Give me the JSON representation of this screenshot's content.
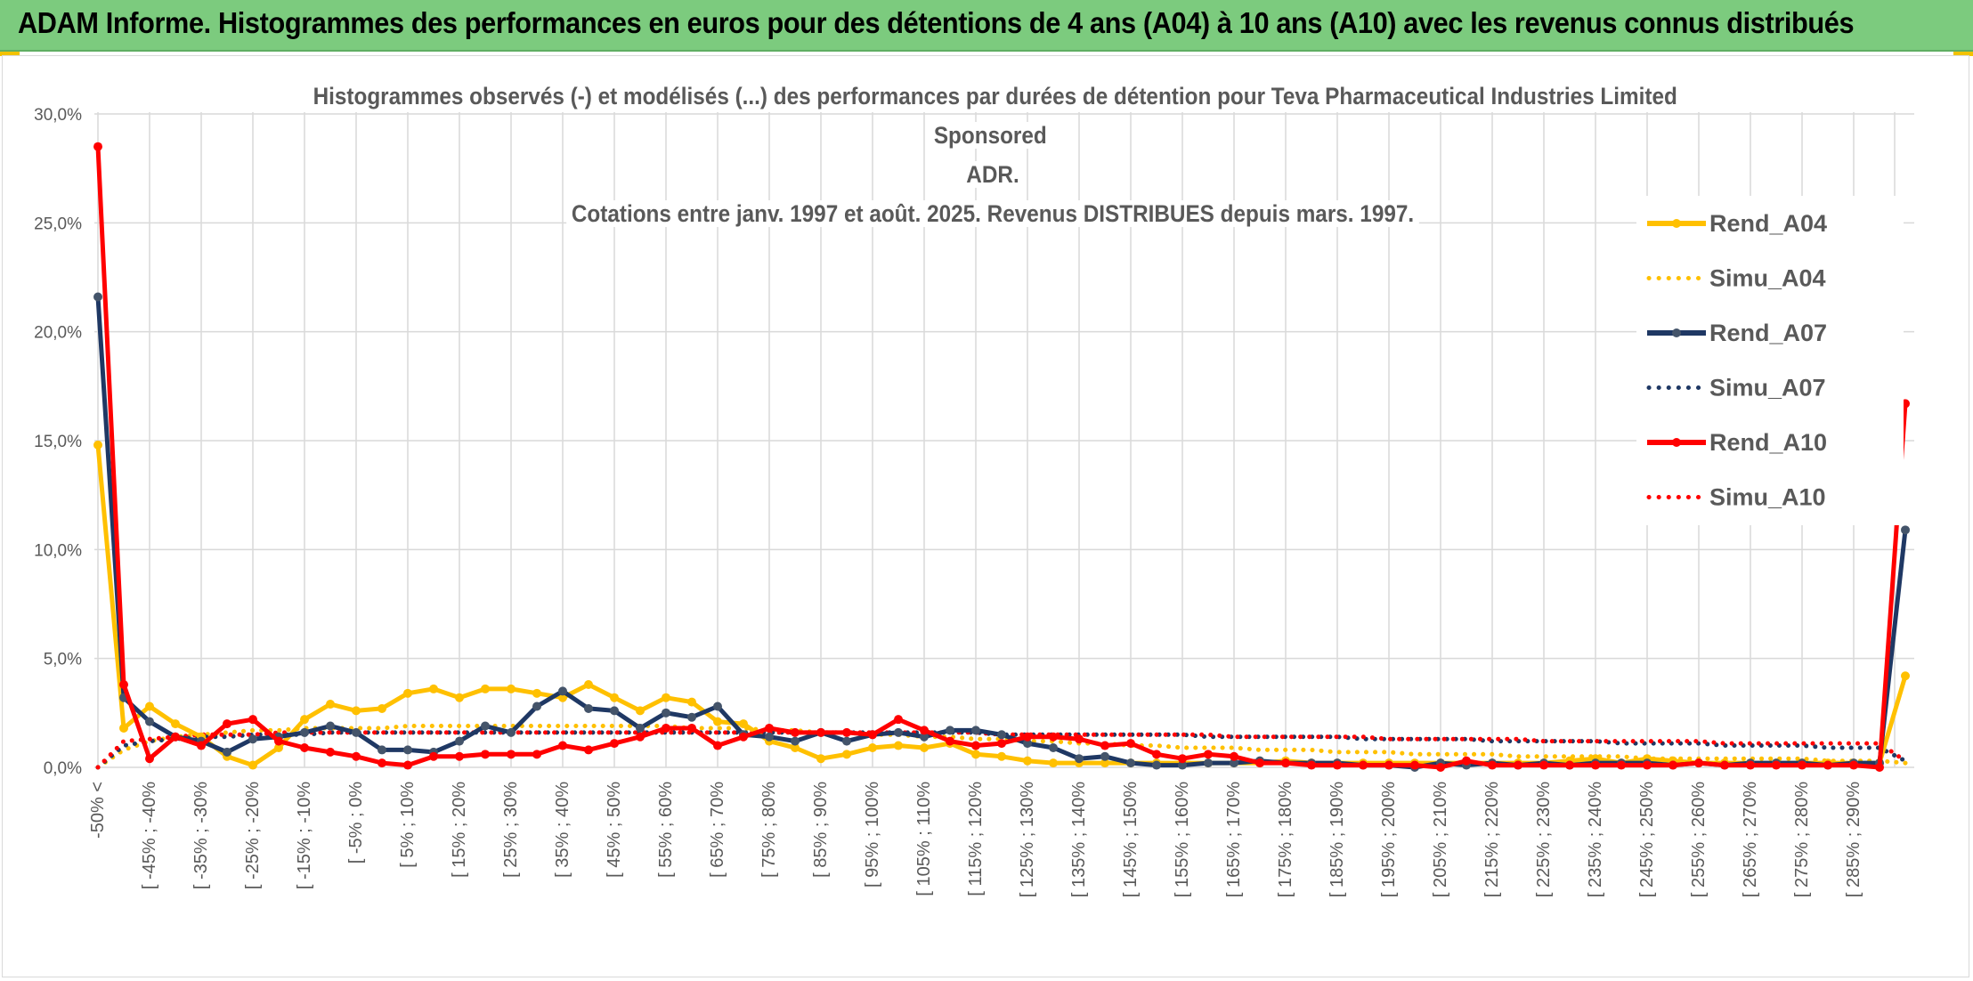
{
  "banner": {
    "title": "ADAM Informe. Histogrammes des performances en euros pour des détentions de 4 ans (A04) à 10 ans (A10) avec les revenus connus distribués"
  },
  "colors": {
    "banner_bg": "#7ccb7e",
    "rend_a04": "#ffc000",
    "rend_a07": "#1f3864",
    "rend_a10": "#ff0000",
    "gridline": "#d9d9d9",
    "axis_text": "#595959"
  },
  "chart_data": {
    "type": "line",
    "title_lines": [
      "Histogrammes observés (-) et modélisés (...) des performances par durées de détention pour Teva Pharmaceutical Industries Limited Sponsored",
      "ADR.",
      "Cotations entre janv. 1997 et août. 2025. Revenus DISTRIBUES depuis mars. 1997."
    ],
    "ylim": [
      0,
      30
    ],
    "yticks": [
      "0,0%",
      "5,0%",
      "10,0%",
      "15,0%",
      "20,0%",
      "25,0%",
      "30,0%"
    ],
    "grid": true,
    "legend_position": "right",
    "category_labels": [
      "-50% <",
      "[ -45% ; -40%",
      "[ -35% ; -30%",
      "[ -25% ; -20%",
      "[ -15% ; -10%",
      "[ -5% ; 0%",
      "[ 5% ; 10%",
      "[ 15% ; 20%",
      "[ 25% ; 30%",
      "[ 35% ; 40%",
      "[ 45% ; 50%",
      "[ 55% ; 60%",
      "[ 65% ; 70%",
      "[ 75% ; 80%",
      "[ 85% ; 90%",
      "[ 95% ; 100%",
      "[ 105% ; 110%",
      "[ 115% ; 120%",
      "[ 125% ; 130%",
      "[ 135% ; 140%",
      "[ 145% ; 150%",
      "[ 155% ; 160%",
      "[ 165% ; 170%",
      "[ 175% ; 180%",
      "[ 185% ; 190%",
      "[ 195% ; 200%",
      "[ 205% ; 210%",
      "[ 215% ; 220%",
      "[ 225% ; 230%",
      "[ 235% ; 240%",
      "[ 245% ; 250%",
      "[ 255% ; 260%",
      "[ 265% ; 270%",
      "[ 275% ; 280%",
      "[ 285% ; 290%"
    ],
    "series": [
      {
        "name": "Rend_A04",
        "style": "solid",
        "color": "#ffc000",
        "values": [
          14.8,
          1.8,
          2.8,
          2.0,
          1.4,
          0.5,
          0.1,
          0.9,
          2.2,
          2.9,
          2.6,
          2.7,
          3.4,
          3.6,
          3.2,
          3.6,
          3.6,
          3.4,
          3.2,
          3.8,
          3.2,
          2.6,
          3.2,
          3.0,
          2.1,
          2.0,
          1.2,
          0.9,
          0.4,
          0.6,
          0.9,
          1.0,
          0.9,
          1.1,
          0.6,
          0.5,
          0.3,
          0.2,
          0.2,
          0.2,
          0.2,
          0.2,
          0.2,
          0.2,
          0.2,
          0.2,
          0.3,
          0.2,
          0.2,
          0.2,
          0.2,
          0.2,
          0.2,
          0.2,
          0.2,
          0.2,
          0.2,
          0.3,
          0.4,
          0.2,
          0.4,
          0.3,
          0.2,
          0.2,
          0.2,
          0.2,
          0.2,
          0.2,
          0.2,
          0.2,
          4.2
        ]
      },
      {
        "name": "Simu_A04",
        "style": "dotted",
        "color": "#ffc000",
        "values": [
          0.0,
          0.8,
          1.2,
          1.4,
          1.5,
          1.6,
          1.7,
          1.7,
          1.8,
          1.8,
          1.8,
          1.8,
          1.9,
          1.9,
          1.9,
          1.9,
          1.9,
          1.9,
          1.9,
          1.9,
          1.9,
          1.9,
          1.9,
          1.8,
          1.8,
          1.8,
          1.7,
          1.7,
          1.6,
          1.6,
          1.5,
          1.5,
          1.4,
          1.4,
          1.3,
          1.3,
          1.2,
          1.2,
          1.1,
          1.1,
          1.0,
          1.0,
          0.9,
          0.9,
          0.9,
          0.8,
          0.8,
          0.8,
          0.7,
          0.7,
          0.7,
          0.6,
          0.6,
          0.6,
          0.6,
          0.5,
          0.5,
          0.5,
          0.5,
          0.5,
          0.4,
          0.4,
          0.4,
          0.4,
          0.4,
          0.4,
          0.4,
          0.3,
          0.3,
          0.3,
          0.2
        ]
      },
      {
        "name": "Rend_A07",
        "style": "solid",
        "color": "#1f3864",
        "values": [
          21.6,
          3.2,
          2.1,
          1.4,
          1.2,
          0.7,
          1.3,
          1.4,
          1.6,
          1.9,
          1.6,
          0.8,
          0.8,
          0.7,
          1.2,
          1.9,
          1.6,
          2.8,
          3.5,
          2.7,
          2.6,
          1.8,
          2.5,
          2.3,
          2.8,
          1.5,
          1.4,
          1.2,
          1.6,
          1.2,
          1.5,
          1.6,
          1.4,
          1.7,
          1.7,
          1.5,
          1.1,
          0.9,
          0.4,
          0.5,
          0.2,
          0.1,
          0.1,
          0.2,
          0.2,
          0.3,
          0.2,
          0.2,
          0.2,
          0.1,
          0.1,
          0.0,
          0.2,
          0.1,
          0.2,
          0.1,
          0.2,
          0.1,
          0.2,
          0.2,
          0.2,
          0.1,
          0.2,
          0.1,
          0.2,
          0.2,
          0.2,
          0.1,
          0.2,
          0.2,
          10.9
        ]
      },
      {
        "name": "Simu_A07",
        "style": "dotted",
        "color": "#1f3864",
        "values": [
          0.0,
          1.0,
          1.2,
          1.3,
          1.4,
          1.4,
          1.5,
          1.5,
          1.5,
          1.6,
          1.6,
          1.6,
          1.6,
          1.6,
          1.6,
          1.6,
          1.6,
          1.6,
          1.6,
          1.6,
          1.6,
          1.6,
          1.6,
          1.6,
          1.6,
          1.6,
          1.6,
          1.6,
          1.6,
          1.6,
          1.6,
          1.6,
          1.6,
          1.6,
          1.6,
          1.5,
          1.5,
          1.5,
          1.5,
          1.5,
          1.5,
          1.5,
          1.5,
          1.4,
          1.4,
          1.4,
          1.4,
          1.4,
          1.4,
          1.3,
          1.3,
          1.3,
          1.3,
          1.3,
          1.2,
          1.2,
          1.2,
          1.2,
          1.2,
          1.1,
          1.1,
          1.1,
          1.1,
          1.0,
          1.0,
          1.0,
          1.0,
          0.9,
          0.9,
          0.9,
          0.3
        ]
      },
      {
        "name": "Rend_A10",
        "style": "solid",
        "color": "#ff0000",
        "values": [
          28.5,
          3.8,
          0.4,
          1.4,
          1.0,
          2.0,
          2.2,
          1.2,
          0.9,
          0.7,
          0.5,
          0.2,
          0.1,
          0.5,
          0.5,
          0.6,
          0.6,
          0.6,
          1.0,
          0.8,
          1.1,
          1.4,
          1.8,
          1.8,
          1.0,
          1.4,
          1.8,
          1.6,
          1.6,
          1.6,
          1.5,
          2.2,
          1.7,
          1.2,
          1.0,
          1.1,
          1.4,
          1.4,
          1.3,
          1.0,
          1.1,
          0.6,
          0.4,
          0.6,
          0.5,
          0.2,
          0.2,
          0.1,
          0.1,
          0.1,
          0.1,
          0.1,
          0.0,
          0.3,
          0.1,
          0.1,
          0.1,
          0.1,
          0.1,
          0.1,
          0.1,
          0.1,
          0.2,
          0.1,
          0.1,
          0.1,
          0.1,
          0.1,
          0.1,
          0.0,
          16.7
        ]
      },
      {
        "name": "Simu_A10",
        "style": "dotted",
        "color": "#ff0000",
        "values": [
          0.0,
          1.2,
          1.3,
          1.4,
          1.5,
          1.5,
          1.5,
          1.6,
          1.6,
          1.6,
          1.6,
          1.6,
          1.6,
          1.6,
          1.6,
          1.6,
          1.6,
          1.6,
          1.6,
          1.6,
          1.6,
          1.6,
          1.6,
          1.6,
          1.6,
          1.6,
          1.6,
          1.6,
          1.6,
          1.6,
          1.6,
          1.6,
          1.6,
          1.6,
          1.6,
          1.5,
          1.5,
          1.5,
          1.5,
          1.5,
          1.5,
          1.5,
          1.5,
          1.5,
          1.4,
          1.4,
          1.4,
          1.4,
          1.4,
          1.4,
          1.3,
          1.3,
          1.3,
          1.3,
          1.3,
          1.3,
          1.2,
          1.2,
          1.2,
          1.2,
          1.2,
          1.2,
          1.2,
          1.1,
          1.1,
          1.1,
          1.1,
          1.1,
          1.1,
          1.1,
          0.3
        ]
      }
    ]
  }
}
